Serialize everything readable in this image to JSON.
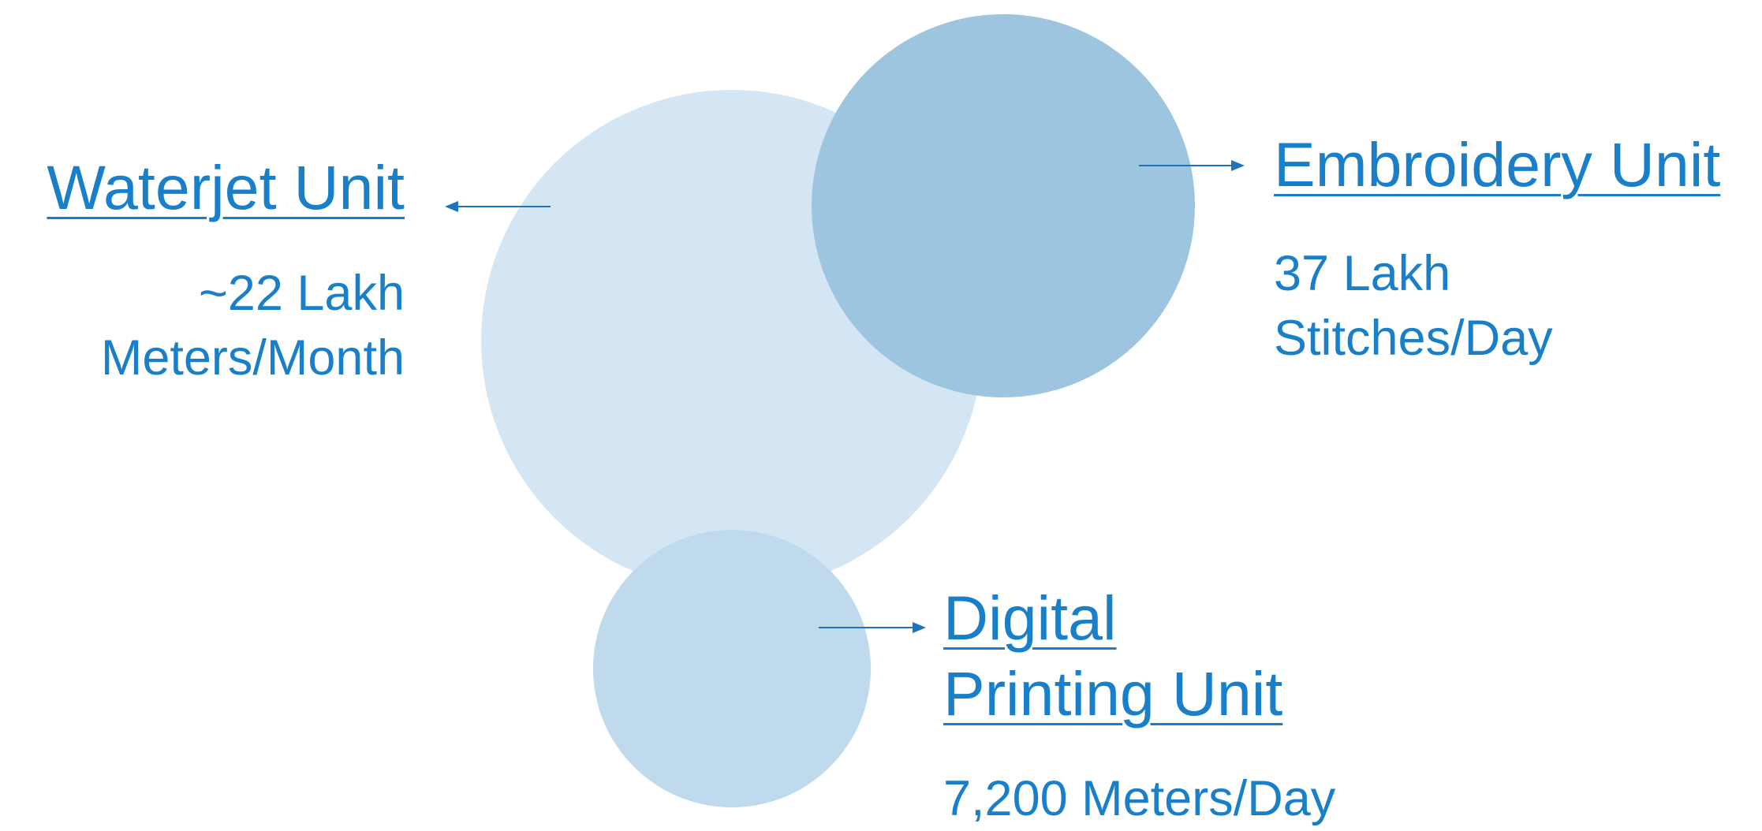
{
  "units": {
    "waterjet": {
      "title": "Waterjet Unit",
      "stat_line1": "~22 Lakh",
      "stat_line2": "Meters/Month"
    },
    "embroidery": {
      "title": "Embroidery Unit",
      "stat_line1": "37 Lakh",
      "stat_line2": "Stitches/Day"
    },
    "digital": {
      "title_line1": "Digital",
      "title_line2": "Printing Unit",
      "stat": "7,200 Meters/Day"
    }
  },
  "colors": {
    "text": "#1a7fc9",
    "arrow": "#1f72bd",
    "circle_large": "#d4e6f3",
    "circle_upper_right": "#9dc5df",
    "circle_small": "#bfdaec"
  }
}
